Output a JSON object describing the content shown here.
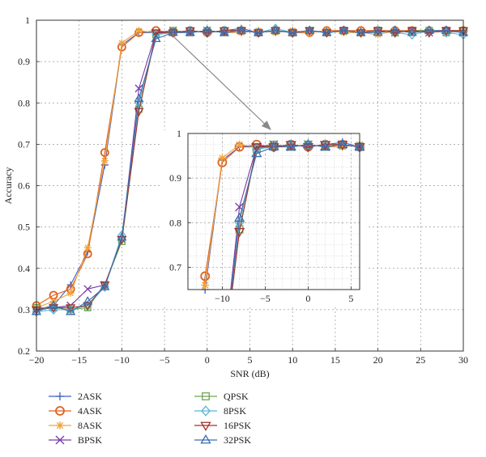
{
  "chart_data": {
    "type": "line",
    "title": "",
    "xlabel": "SNR (dB)",
    "ylabel": "Accuracy",
    "xlim": [
      -20,
      30
    ],
    "ylim": [
      0.2,
      1.0
    ],
    "xticks": [
      -20,
      -15,
      -10,
      -5,
      0,
      5,
      10,
      15,
      20,
      25,
      30
    ],
    "yticks": [
      0.2,
      0.3,
      0.4,
      0.5,
      0.6,
      0.7,
      0.8,
      0.9,
      1
    ],
    "grid": true,
    "legend_placement": "bottom",
    "x": [
      -20,
      -18,
      -16,
      -14,
      -12,
      -10,
      -8,
      -6,
      -4,
      -2,
      0,
      2,
      4,
      6,
      8,
      10,
      12,
      14,
      16,
      18,
      20,
      22,
      24,
      26,
      28,
      30
    ],
    "series": [
      {
        "name": "2ASK",
        "marker": "plus",
        "color": "#3a5fc4",
        "values": [
          0.3,
          0.31,
          0.36,
          0.44,
          0.65,
          0.94,
          0.97,
          0.97,
          0.97,
          0.975,
          0.97,
          0.975,
          0.98,
          0.97,
          0.975,
          0.97,
          0.975,
          0.97,
          0.975,
          0.97,
          0.975,
          0.97,
          0.975,
          0.975,
          0.97,
          0.975
        ]
      },
      {
        "name": "4ASK",
        "marker": "circle",
        "color": "#e0601a",
        "values": [
          0.31,
          0.335,
          0.35,
          0.435,
          0.68,
          0.935,
          0.97,
          0.975,
          0.97,
          0.975,
          0.97,
          0.975,
          0.975,
          0.97,
          0.975,
          0.97,
          0.97,
          0.975,
          0.975,
          0.975,
          0.975,
          0.975,
          0.975,
          0.975,
          0.975,
          0.975
        ]
      },
      {
        "name": "8ASK",
        "marker": "asterisk",
        "color": "#f2a33a",
        "values": [
          0.305,
          0.32,
          0.34,
          0.45,
          0.66,
          0.945,
          0.975,
          0.97,
          0.975,
          0.97,
          0.975,
          0.97,
          0.97,
          0.975,
          0.97,
          0.975,
          0.97,
          0.975,
          0.97,
          0.97,
          0.965,
          0.975,
          0.97,
          0.975,
          0.97,
          0.975
        ]
      },
      {
        "name": "BPSK",
        "marker": "x",
        "color": "#7a3aa8",
        "values": [
          0.3,
          0.305,
          0.31,
          0.35,
          0.36,
          0.47,
          0.835,
          0.97,
          0.975,
          0.97,
          0.975,
          0.97,
          0.975,
          0.97,
          0.975,
          0.97,
          0.975,
          0.97,
          0.975,
          0.97,
          0.975,
          0.97,
          0.975,
          0.97,
          0.975,
          0.97
        ]
      },
      {
        "name": "QPSK",
        "marker": "square",
        "color": "#6aa84f",
        "values": [
          0.305,
          0.305,
          0.3,
          0.305,
          0.36,
          0.465,
          0.785,
          0.965,
          0.975,
          0.97,
          0.975,
          0.97,
          0.975,
          0.97,
          0.975,
          0.97,
          0.975,
          0.97,
          0.975,
          0.97,
          0.975,
          0.97,
          0.975,
          0.975,
          0.97,
          0.975
        ]
      },
      {
        "name": "8PSK",
        "marker": "diamond",
        "color": "#5ab4d6",
        "values": [
          0.295,
          0.3,
          0.3,
          0.31,
          0.355,
          0.48,
          0.8,
          0.965,
          0.97,
          0.975,
          0.97,
          0.975,
          0.975,
          0.97,
          0.98,
          0.97,
          0.975,
          0.97,
          0.975,
          0.97,
          0.975,
          0.97,
          0.965,
          0.975,
          0.97,
          0.965
        ]
      },
      {
        "name": "16PSK",
        "marker": "triangle-down",
        "color": "#a0322a",
        "values": [
          0.3,
          0.305,
          0.305,
          0.31,
          0.36,
          0.47,
          0.78,
          0.97,
          0.97,
          0.975,
          0.97,
          0.975,
          0.975,
          0.97,
          0.975,
          0.97,
          0.975,
          0.97,
          0.975,
          0.97,
          0.975,
          0.97,
          0.975,
          0.97,
          0.975,
          0.975
        ]
      },
      {
        "name": "32PSK",
        "marker": "triangle-up",
        "color": "#3a6fb0",
        "values": [
          0.295,
          0.31,
          0.295,
          0.32,
          0.355,
          0.475,
          0.81,
          0.955,
          0.97,
          0.97,
          0.975,
          0.97,
          0.975,
          0.97,
          0.975,
          0.97,
          0.975,
          0.97,
          0.975,
          0.97,
          0.97,
          0.975,
          0.97,
          0.975,
          0.975,
          0.97
        ]
      }
    ],
    "inset": {
      "xlim": [
        -14,
        6
      ],
      "ylim": [
        0.65,
        1.0
      ],
      "xticks": [
        -10,
        -5,
        0,
        5
      ],
      "yticks": [
        0.7,
        0.8,
        0.9,
        1
      ],
      "ytick_labels": [
        "0.7",
        "0.8",
        "0.9",
        "1"
      ],
      "grid": true
    }
  }
}
